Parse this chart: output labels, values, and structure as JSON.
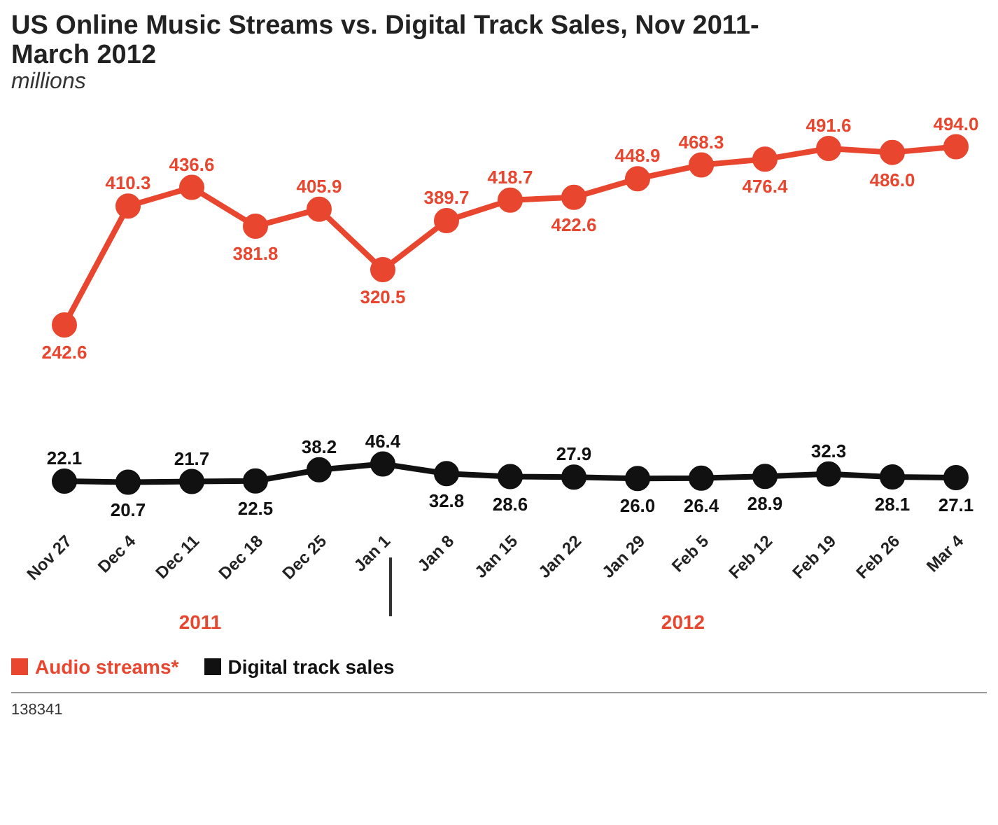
{
  "chart_data": {
    "type": "line",
    "title": "US Online Music Streams vs. Digital Track Sales, Nov 2011-March 2012",
    "subtitle": "millions",
    "categories": [
      "Nov 27",
      "Dec 4",
      "Dec 11",
      "Dec 18",
      "Dec 25",
      "Jan 1",
      "Jan 8",
      "Jan 15",
      "Jan 22",
      "Jan 29",
      "Feb 5",
      "Feb 12",
      "Feb 19",
      "Feb 26",
      "Mar 4"
    ],
    "series": [
      {
        "name": "Audio streams*",
        "color": "#e8462f",
        "values": [
          242.6,
          410.3,
          436.6,
          381.8,
          405.9,
          320.5,
          389.7,
          418.7,
          422.6,
          448.9,
          468.3,
          476.4,
          491.6,
          486.0,
          494.0
        ],
        "value_labels": [
          "242.6",
          "410.3",
          "436.6",
          "381.8",
          "405.9",
          "320.5",
          "389.7",
          "418.7",
          "422.6",
          "448.9",
          "468.3",
          "476.4",
          "491.6",
          "486.0",
          "494.0"
        ]
      },
      {
        "name": "Digital track sales",
        "color": "#111111",
        "values": [
          22.1,
          20.7,
          21.7,
          22.5,
          38.2,
          46.4,
          32.8,
          28.6,
          27.9,
          26.0,
          26.4,
          28.9,
          32.3,
          28.1,
          27.1
        ],
        "value_labels": [
          "22.1",
          "20.7",
          "21.7",
          "22.5",
          "38.2",
          "46.4",
          "32.8",
          "28.6",
          "27.9",
          "26.0",
          "26.4",
          "28.9",
          "32.3",
          "28.1",
          "27.1"
        ]
      }
    ],
    "marker": "circle",
    "line_style": "solid",
    "legend": "bottom",
    "annotations": [
      "2011",
      "2012",
      "138341"
    ]
  }
}
